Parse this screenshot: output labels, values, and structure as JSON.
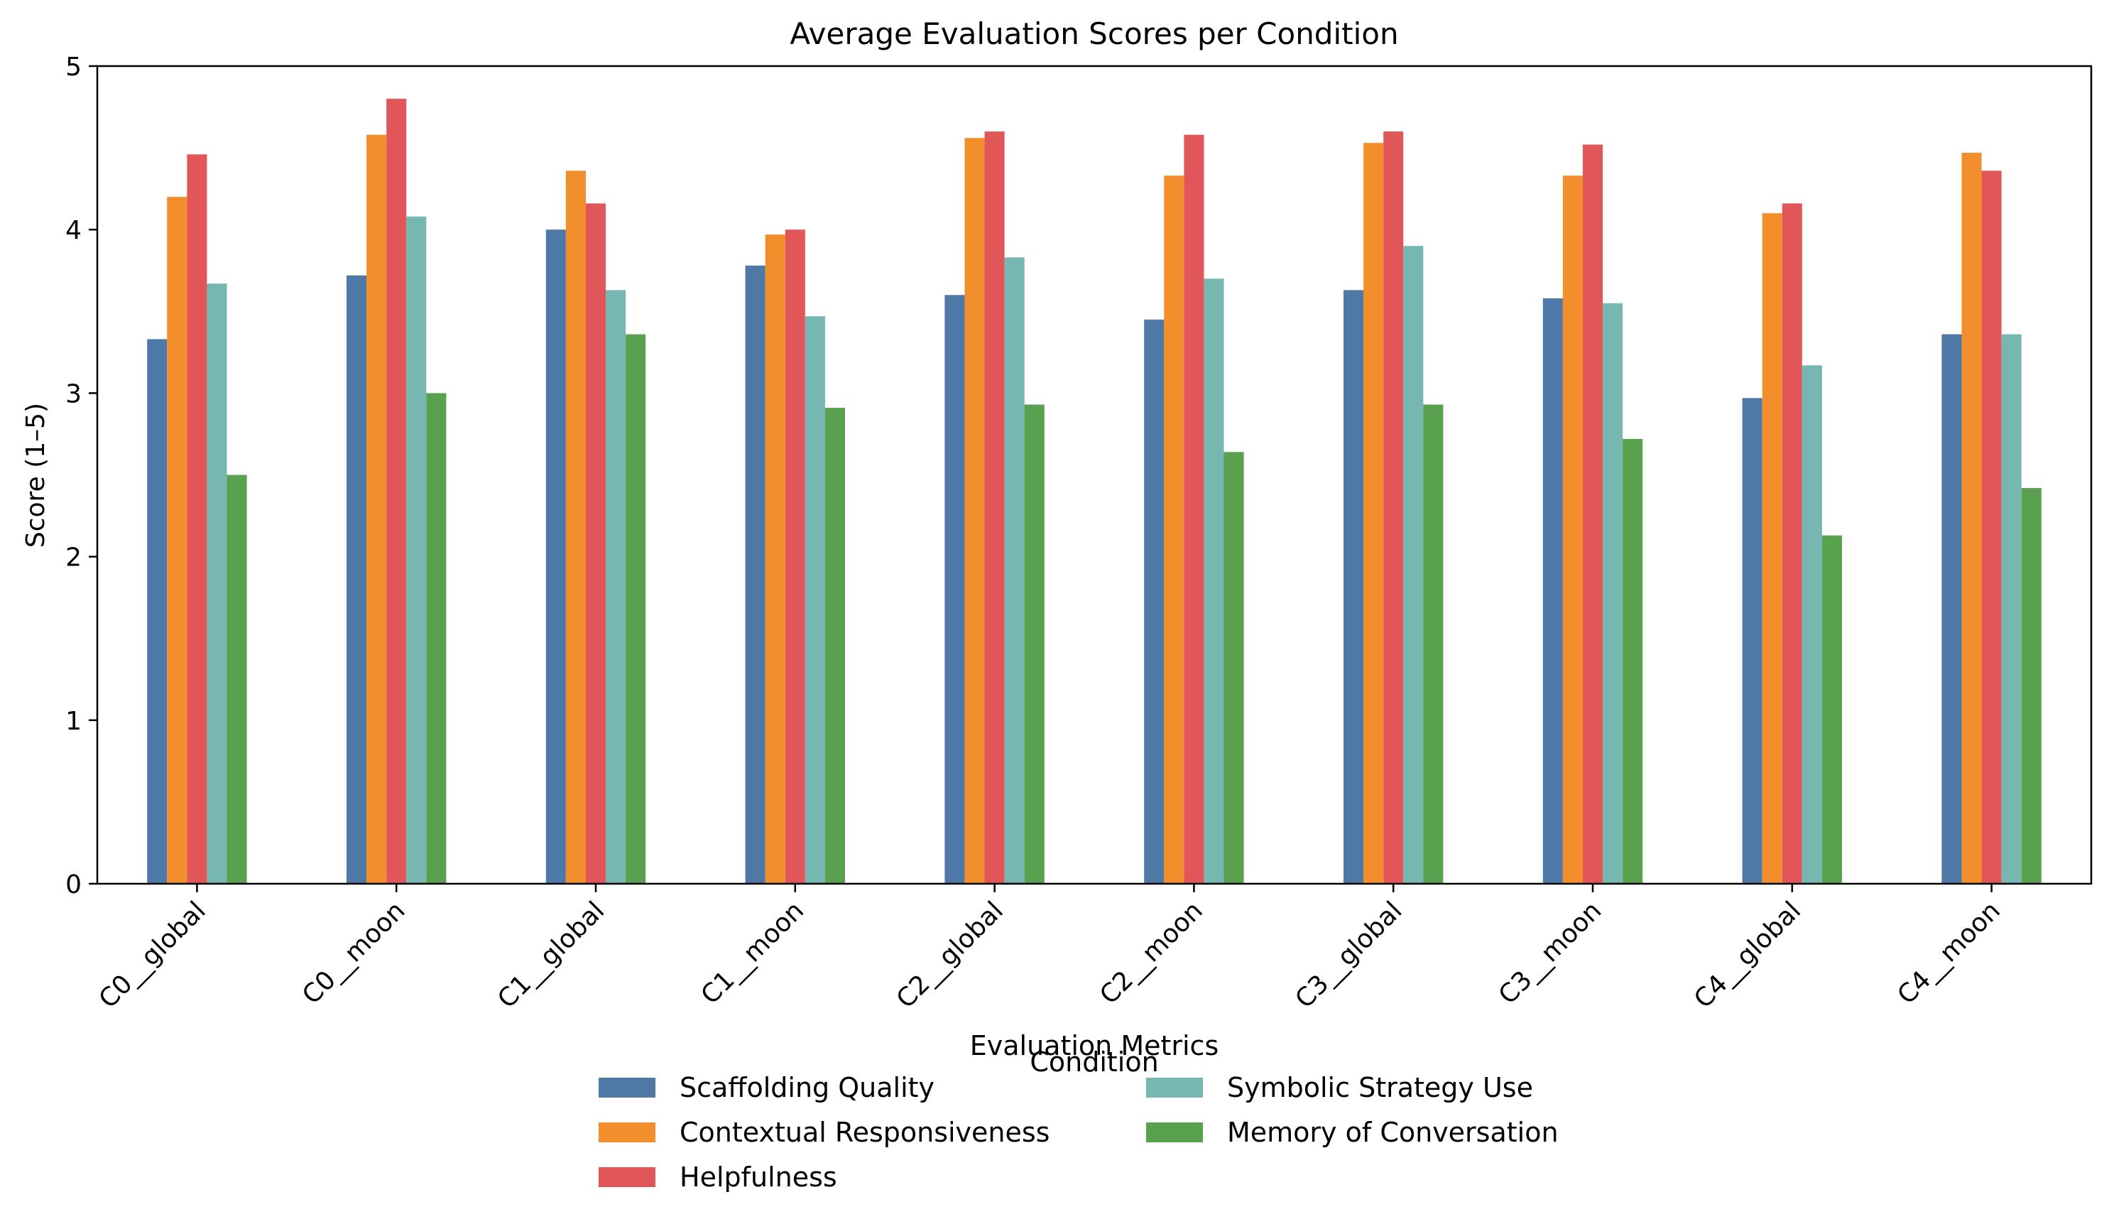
{
  "chart_data": {
    "type": "bar",
    "title": "Average Evaluation Scores per Condition",
    "xlabel": "Condition",
    "ylabel": "Score (1–5)",
    "ylim": [
      0,
      5
    ],
    "yticks": [
      "0",
      "1",
      "2",
      "3",
      "4",
      "5"
    ],
    "grid": false,
    "categories": [
      "C0__global",
      "C0__moon",
      "C1__global",
      "C1__moon",
      "C2__global",
      "C2__moon",
      "C3__global",
      "C3__moon",
      "C4__global",
      "C4__moon"
    ],
    "legend": {
      "title": "Evaluation Metrics",
      "placement": "bottom-center"
    },
    "series": [
      {
        "name": "Scaffolding Quality",
        "color": "#4e79a7",
        "values": [
          3.33,
          3.72,
          4.0,
          3.78,
          3.6,
          3.45,
          3.63,
          3.58,
          2.97,
          3.36
        ]
      },
      {
        "name": "Contextual Responsiveness",
        "color": "#f28e2b",
        "values": [
          4.2,
          4.58,
          4.36,
          3.97,
          4.56,
          4.33,
          4.53,
          4.33,
          4.1,
          4.47
        ]
      },
      {
        "name": "Helpfulness",
        "color": "#e15759",
        "values": [
          4.46,
          4.8,
          4.16,
          4.0,
          4.6,
          4.58,
          4.6,
          4.52,
          4.16,
          4.36
        ]
      },
      {
        "name": "Symbolic Strategy Use",
        "color": "#76b7b2",
        "values": [
          3.67,
          4.08,
          3.63,
          3.47,
          3.83,
          3.7,
          3.9,
          3.55,
          3.17,
          3.36
        ]
      },
      {
        "name": "Memory of Conversation",
        "color": "#59a14f",
        "values": [
          2.5,
          3.0,
          3.36,
          2.91,
          2.93,
          2.64,
          2.93,
          2.72,
          2.13,
          2.42
        ]
      }
    ]
  }
}
